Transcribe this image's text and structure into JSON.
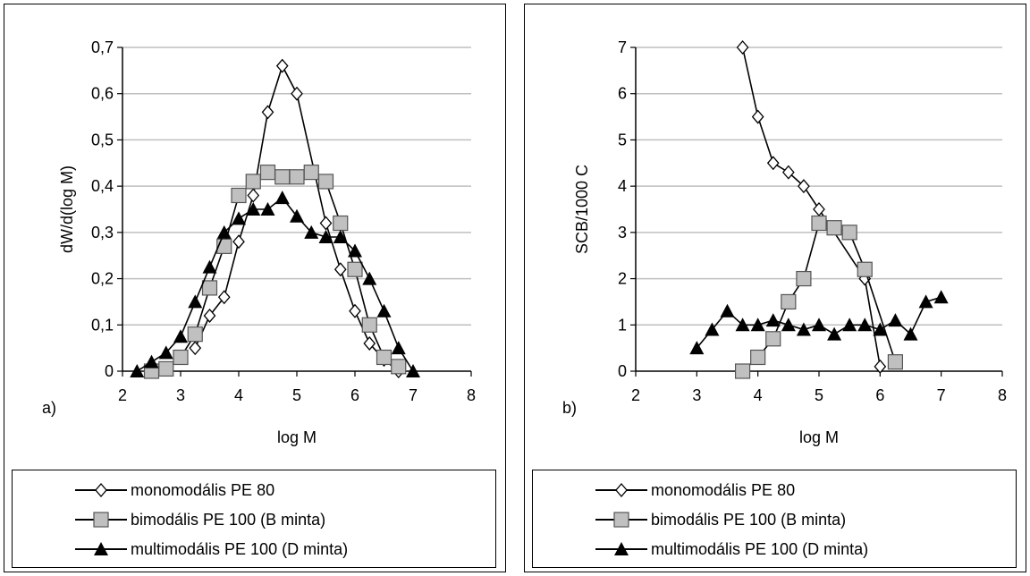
{
  "chart_data": [
    {
      "type": "line",
      "panel_label": "a)",
      "xlabel": "log M",
      "ylabel": "dW/d(log M)",
      "xlim": [
        2,
        8
      ],
      "ylim": [
        0,
        0.7
      ],
      "xticks": [
        "2",
        "3",
        "4",
        "5",
        "6",
        "7",
        "8"
      ],
      "yticks": [
        "0",
        "0,1",
        "0,2",
        "0,3",
        "0,4",
        "0,5",
        "0,6",
        "0,7"
      ],
      "grid": "horizontal",
      "legend_position": "bottom",
      "series": [
        {
          "name": "monomodális PE 80",
          "marker": "diamond-open",
          "points": [
            [
              3.25,
              0.05
            ],
            [
              3.5,
              0.12
            ],
            [
              3.75,
              0.16
            ],
            [
              4.0,
              0.28
            ],
            [
              4.25,
              0.38
            ],
            [
              4.5,
              0.56
            ],
            [
              4.75,
              0.66
            ],
            [
              5.0,
              0.6
            ],
            [
              5.5,
              0.32
            ],
            [
              5.75,
              0.22
            ],
            [
              6.0,
              0.13
            ],
            [
              6.25,
              0.06
            ],
            [
              6.5,
              0.025
            ],
            [
              6.75,
              0.0
            ]
          ]
        },
        {
          "name": "bimodális PE 100 (B minta)",
          "marker": "square-gray",
          "points": [
            [
              2.5,
              0.0
            ],
            [
              2.75,
              0.005
            ],
            [
              3.0,
              0.03
            ],
            [
              3.25,
              0.08
            ],
            [
              3.5,
              0.18
            ],
            [
              3.75,
              0.27
            ],
            [
              4.0,
              0.38
            ],
            [
              4.25,
              0.41
            ],
            [
              4.5,
              0.43
            ],
            [
              4.75,
              0.42
            ],
            [
              5.0,
              0.42
            ],
            [
              5.25,
              0.43
            ],
            [
              5.5,
              0.41
            ],
            [
              5.75,
              0.32
            ],
            [
              6.0,
              0.22
            ],
            [
              6.25,
              0.1
            ],
            [
              6.5,
              0.03
            ],
            [
              6.75,
              0.01
            ]
          ]
        },
        {
          "name": "multimodális PE 100 (D minta)",
          "marker": "triangle-filled",
          "points": [
            [
              2.25,
              0.0
            ],
            [
              2.5,
              0.02
            ],
            [
              2.75,
              0.04
            ],
            [
              3.0,
              0.075
            ],
            [
              3.25,
              0.15
            ],
            [
              3.5,
              0.225
            ],
            [
              3.75,
              0.3
            ],
            [
              4.0,
              0.33
            ],
            [
              4.25,
              0.35
            ],
            [
              4.5,
              0.35
            ],
            [
              4.75,
              0.375
            ],
            [
              5.0,
              0.335
            ],
            [
              5.25,
              0.3
            ],
            [
              5.5,
              0.29
            ],
            [
              5.75,
              0.29
            ],
            [
              6.0,
              0.26
            ],
            [
              6.25,
              0.2
            ],
            [
              6.5,
              0.13
            ],
            [
              6.75,
              0.05
            ],
            [
              7.0,
              0.0
            ]
          ]
        }
      ]
    },
    {
      "type": "line",
      "panel_label": "b)",
      "xlabel": "log M",
      "ylabel": "SCB/1000 C",
      "xlim": [
        2,
        8
      ],
      "ylim": [
        0,
        7
      ],
      "xticks": [
        "2",
        "3",
        "4",
        "5",
        "6",
        "7",
        "8"
      ],
      "yticks": [
        "0",
        "1",
        "2",
        "3",
        "4",
        "5",
        "6",
        "7"
      ],
      "grid": "horizontal",
      "legend_position": "bottom",
      "series": [
        {
          "name": "monomodális PE 80",
          "marker": "diamond-open",
          "points": [
            [
              3.75,
              7.0
            ],
            [
              4.0,
              5.5
            ],
            [
              4.25,
              4.5
            ],
            [
              4.5,
              4.3
            ],
            [
              4.75,
              4.0
            ],
            [
              5.0,
              3.5
            ],
            [
              5.75,
              2.0
            ],
            [
              6.0,
              0.1
            ]
          ]
        },
        {
          "name": "bimodális PE 100 (B minta)",
          "marker": "square-gray",
          "points": [
            [
              3.75,
              0.0
            ],
            [
              4.0,
              0.3
            ],
            [
              4.25,
              0.7
            ],
            [
              4.5,
              1.5
            ],
            [
              4.75,
              2.0
            ],
            [
              5.0,
              3.2
            ],
            [
              5.25,
              3.1
            ],
            [
              5.5,
              3.0
            ],
            [
              5.75,
              2.2
            ],
            [
              6.25,
              0.2
            ]
          ]
        },
        {
          "name": "multimodális PE 100 (D minta)",
          "marker": "triangle-filled",
          "points": [
            [
              3.0,
              0.5
            ],
            [
              3.25,
              0.9
            ],
            [
              3.5,
              1.3
            ],
            [
              3.75,
              1.0
            ],
            [
              4.0,
              1.0
            ],
            [
              4.25,
              1.1
            ],
            [
              4.5,
              1.0
            ],
            [
              4.75,
              0.9
            ],
            [
              5.0,
              1.0
            ],
            [
              5.25,
              0.8
            ],
            [
              5.5,
              1.0
            ],
            [
              5.75,
              1.0
            ],
            [
              6.0,
              0.9
            ],
            [
              6.25,
              1.1
            ],
            [
              6.5,
              0.8
            ],
            [
              6.75,
              1.5
            ],
            [
              7.0,
              1.6
            ]
          ]
        }
      ]
    }
  ],
  "colors": {
    "line": "#000000",
    "grid": "#bfbfbf",
    "square_fill": "#c0c0c0",
    "triangle_fill": "#000000",
    "diamond_fill": "#ffffff"
  }
}
